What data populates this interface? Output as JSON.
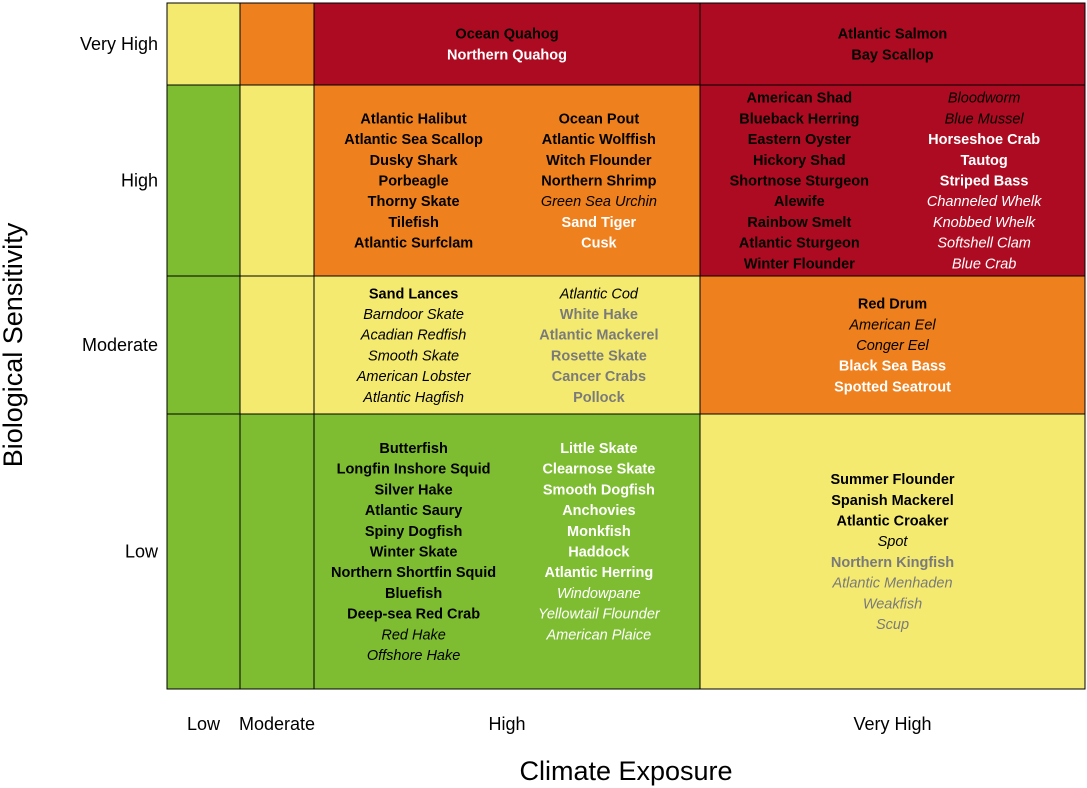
{
  "chart_data": {
    "type": "table",
    "title": "",
    "xlabel": "Climate Exposure",
    "ylabel": "Biological Sensitivity",
    "x_categories": [
      "Low",
      "Moderate",
      "High",
      "Very High"
    ],
    "y_categories": [
      "Very High",
      "High",
      "Moderate",
      "Low"
    ],
    "colors": {
      "green": "#7ebd31",
      "yellow": "#f4ea6f",
      "orange": "#ef801e",
      "red": "#ad0b21",
      "gray_text": "#7a7a7a"
    },
    "cells": [
      {
        "x": "Low",
        "y": "Very High",
        "color": "#f4ea6f",
        "columns": []
      },
      {
        "x": "Moderate",
        "y": "Very High",
        "color": "#ef801e",
        "columns": []
      },
      {
        "x": "High",
        "y": "Very High",
        "color": "#ad0b21",
        "columns": [
          [
            {
              "name": "Ocean Quahog",
              "bold": true,
              "italic": false,
              "color": "#000000"
            },
            {
              "name": "Northern Quahog",
              "bold": true,
              "italic": false,
              "color": "#ffffff"
            }
          ]
        ]
      },
      {
        "x": "Very High",
        "y": "Very High",
        "color": "#ad0b21",
        "columns": [
          [
            {
              "name": "Atlantic Salmon",
              "bold": true,
              "italic": false,
              "color": "#000000"
            },
            {
              "name": "Bay Scallop",
              "bold": true,
              "italic": false,
              "color": "#000000"
            }
          ]
        ]
      },
      {
        "x": "Low",
        "y": "High",
        "color": "#7ebd31",
        "columns": []
      },
      {
        "x": "Moderate",
        "y": "High",
        "color": "#f4ea6f",
        "columns": []
      },
      {
        "x": "High",
        "y": "High",
        "color": "#ef801e",
        "columns": [
          [
            {
              "name": "Atlantic Halibut",
              "bold": true,
              "italic": false,
              "color": "#000000"
            },
            {
              "name": "Atlantic Sea Scallop",
              "bold": true,
              "italic": false,
              "color": "#000000"
            },
            {
              "name": "Dusky Shark",
              "bold": true,
              "italic": false,
              "color": "#000000"
            },
            {
              "name": "Porbeagle",
              "bold": true,
              "italic": false,
              "color": "#000000"
            },
            {
              "name": "Thorny Skate",
              "bold": true,
              "italic": false,
              "color": "#000000"
            },
            {
              "name": "Tilefish",
              "bold": true,
              "italic": false,
              "color": "#000000"
            },
            {
              "name": "Atlantic Surfclam",
              "bold": true,
              "italic": false,
              "color": "#000000"
            }
          ],
          [
            {
              "name": "Ocean Pout",
              "bold": true,
              "italic": false,
              "color": "#000000"
            },
            {
              "name": "Atlantic Wolffish",
              "bold": true,
              "italic": false,
              "color": "#000000"
            },
            {
              "name": "Witch Flounder",
              "bold": true,
              "italic": false,
              "color": "#000000"
            },
            {
              "name": "Northern Shrimp",
              "bold": true,
              "italic": false,
              "color": "#000000"
            },
            {
              "name": "Green Sea Urchin",
              "bold": false,
              "italic": true,
              "color": "#000000"
            },
            {
              "name": "Sand Tiger",
              "bold": true,
              "italic": false,
              "color": "#ffffff"
            },
            {
              "name": "Cusk",
              "bold": true,
              "italic": false,
              "color": "#ffffff"
            }
          ]
        ]
      },
      {
        "x": "Very High",
        "y": "High",
        "color": "#ad0b21",
        "columns": [
          [
            {
              "name": "American Shad",
              "bold": true,
              "italic": false,
              "color": "#000000"
            },
            {
              "name": "Blueback Herring",
              "bold": true,
              "italic": false,
              "color": "#000000"
            },
            {
              "name": "Eastern Oyster",
              "bold": true,
              "italic": false,
              "color": "#000000"
            },
            {
              "name": "Hickory Shad",
              "bold": true,
              "italic": false,
              "color": "#000000"
            },
            {
              "name": "Shortnose Sturgeon",
              "bold": true,
              "italic": false,
              "color": "#000000"
            },
            {
              "name": "Alewife",
              "bold": true,
              "italic": false,
              "color": "#000000"
            },
            {
              "name": "Rainbow Smelt",
              "bold": true,
              "italic": false,
              "color": "#000000"
            },
            {
              "name": "Atlantic Sturgeon",
              "bold": true,
              "italic": false,
              "color": "#000000"
            },
            {
              "name": "Winter Flounder",
              "bold": true,
              "italic": false,
              "color": "#000000"
            }
          ],
          [
            {
              "name": "Bloodworm",
              "bold": false,
              "italic": true,
              "color": "#000000"
            },
            {
              "name": "Blue Mussel",
              "bold": false,
              "italic": true,
              "color": "#000000"
            },
            {
              "name": "Horseshoe Crab",
              "bold": true,
              "italic": false,
              "color": "#ffffff"
            },
            {
              "name": "Tautog",
              "bold": true,
              "italic": false,
              "color": "#ffffff"
            },
            {
              "name": "Striped Bass",
              "bold": true,
              "italic": false,
              "color": "#ffffff"
            },
            {
              "name": "Channeled Whelk",
              "bold": false,
              "italic": true,
              "color": "#ffffff"
            },
            {
              "name": "Knobbed Whelk",
              "bold": false,
              "italic": true,
              "color": "#ffffff"
            },
            {
              "name": "Softshell Clam",
              "bold": false,
              "italic": true,
              "color": "#ffffff"
            },
            {
              "name": "Blue Crab",
              "bold": false,
              "italic": true,
              "color": "#ffffff"
            }
          ]
        ]
      },
      {
        "x": "Low",
        "y": "Moderate",
        "color": "#7ebd31",
        "columns": []
      },
      {
        "x": "Moderate",
        "y": "Moderate",
        "color": "#f4ea6f",
        "columns": []
      },
      {
        "x": "High",
        "y": "Moderate",
        "color": "#f4ea6f",
        "columns": [
          [
            {
              "name": "Sand Lances",
              "bold": true,
              "italic": false,
              "color": "#000000"
            },
            {
              "name": "Barndoor Skate",
              "bold": false,
              "italic": true,
              "color": "#000000"
            },
            {
              "name": "Acadian Redfish",
              "bold": false,
              "italic": true,
              "color": "#000000"
            },
            {
              "name": "Smooth Skate",
              "bold": false,
              "italic": true,
              "color": "#000000"
            },
            {
              "name": "American Lobster",
              "bold": false,
              "italic": true,
              "color": "#000000"
            },
            {
              "name": "Atlantic Hagfish",
              "bold": false,
              "italic": true,
              "color": "#000000"
            }
          ],
          [
            {
              "name": "Atlantic Cod",
              "bold": false,
              "italic": true,
              "color": "#000000"
            },
            {
              "name": "White Hake",
              "bold": true,
              "italic": false,
              "color": "#7a7a7a"
            },
            {
              "name": "Atlantic Mackerel",
              "bold": true,
              "italic": false,
              "color": "#7a7a7a"
            },
            {
              "name": "Rosette Skate",
              "bold": true,
              "italic": false,
              "color": "#7a7a7a"
            },
            {
              "name": "Cancer Crabs",
              "bold": true,
              "italic": false,
              "color": "#7a7a7a"
            },
            {
              "name": "Pollock",
              "bold": true,
              "italic": false,
              "color": "#7a7a7a"
            }
          ]
        ]
      },
      {
        "x": "Very High",
        "y": "Moderate",
        "color": "#ef801e",
        "columns": [
          [
            {
              "name": "Red Drum",
              "bold": true,
              "italic": false,
              "color": "#000000"
            },
            {
              "name": "American Eel",
              "bold": false,
              "italic": true,
              "color": "#000000"
            },
            {
              "name": "Conger Eel",
              "bold": false,
              "italic": true,
              "color": "#000000"
            },
            {
              "name": "Black Sea Bass",
              "bold": true,
              "italic": false,
              "color": "#ffffff"
            },
            {
              "name": "Spotted Seatrout",
              "bold": true,
              "italic": false,
              "color": "#ffffff"
            }
          ]
        ]
      },
      {
        "x": "Low",
        "y": "Low",
        "color": "#7ebd31",
        "columns": []
      },
      {
        "x": "Moderate",
        "y": "Low",
        "color": "#7ebd31",
        "columns": []
      },
      {
        "x": "High",
        "y": "Low",
        "color": "#7ebd31",
        "columns": [
          [
            {
              "name": "Butterfish",
              "bold": true,
              "italic": false,
              "color": "#000000"
            },
            {
              "name": "Longfin Inshore Squid",
              "bold": true,
              "italic": false,
              "color": "#000000"
            },
            {
              "name": "Silver Hake",
              "bold": true,
              "italic": false,
              "color": "#000000"
            },
            {
              "name": "Atlantic Saury",
              "bold": true,
              "italic": false,
              "color": "#000000"
            },
            {
              "name": "Spiny Dogfish",
              "bold": true,
              "italic": false,
              "color": "#000000"
            },
            {
              "name": "Winter Skate",
              "bold": true,
              "italic": false,
              "color": "#000000"
            },
            {
              "name": "Northern Shortfin Squid",
              "bold": true,
              "italic": false,
              "color": "#000000"
            },
            {
              "name": "Bluefish",
              "bold": true,
              "italic": false,
              "color": "#000000"
            },
            {
              "name": "Deep-sea Red Crab",
              "bold": true,
              "italic": false,
              "color": "#000000"
            },
            {
              "name": "Red Hake",
              "bold": false,
              "italic": true,
              "color": "#000000"
            },
            {
              "name": "Offshore Hake",
              "bold": false,
              "italic": true,
              "color": "#000000"
            }
          ],
          [
            {
              "name": "Little Skate",
              "bold": true,
              "italic": false,
              "color": "#ffffff"
            },
            {
              "name": "Clearnose Skate",
              "bold": true,
              "italic": false,
              "color": "#ffffff"
            },
            {
              "name": "Smooth Dogfish",
              "bold": true,
              "italic": false,
              "color": "#ffffff"
            },
            {
              "name": "Anchovies",
              "bold": true,
              "italic": false,
              "color": "#ffffff"
            },
            {
              "name": "Monkfish",
              "bold": true,
              "italic": false,
              "color": "#ffffff"
            },
            {
              "name": "Haddock",
              "bold": true,
              "italic": false,
              "color": "#ffffff"
            },
            {
              "name": "Atlantic Herring",
              "bold": true,
              "italic": false,
              "color": "#ffffff"
            },
            {
              "name": "Windowpane",
              "bold": false,
              "italic": true,
              "color": "#ffffff"
            },
            {
              "name": "Yellowtail Flounder",
              "bold": false,
              "italic": true,
              "color": "#ffffff"
            },
            {
              "name": "American Plaice",
              "bold": false,
              "italic": true,
              "color": "#ffffff"
            }
          ]
        ]
      },
      {
        "x": "Very High",
        "y": "Low",
        "color": "#f4ea6f",
        "columns": [
          [
            {
              "name": "Summer Flounder",
              "bold": true,
              "italic": false,
              "color": "#000000"
            },
            {
              "name": "Spanish Mackerel",
              "bold": true,
              "italic": false,
              "color": "#000000"
            },
            {
              "name": "Atlantic Croaker",
              "bold": true,
              "italic": false,
              "color": "#000000"
            },
            {
              "name": "Spot",
              "bold": false,
              "italic": true,
              "color": "#000000"
            },
            {
              "name": "Northern Kingfish",
              "bold": true,
              "italic": false,
              "color": "#7a7a7a"
            },
            {
              "name": "Atlantic Menhaden",
              "bold": false,
              "italic": true,
              "color": "#7a7a7a"
            },
            {
              "name": "Weakfish",
              "bold": false,
              "italic": true,
              "color": "#7a7a7a"
            },
            {
              "name": "Scup",
              "bold": false,
              "italic": true,
              "color": "#7a7a7a"
            }
          ]
        ]
      }
    ]
  }
}
